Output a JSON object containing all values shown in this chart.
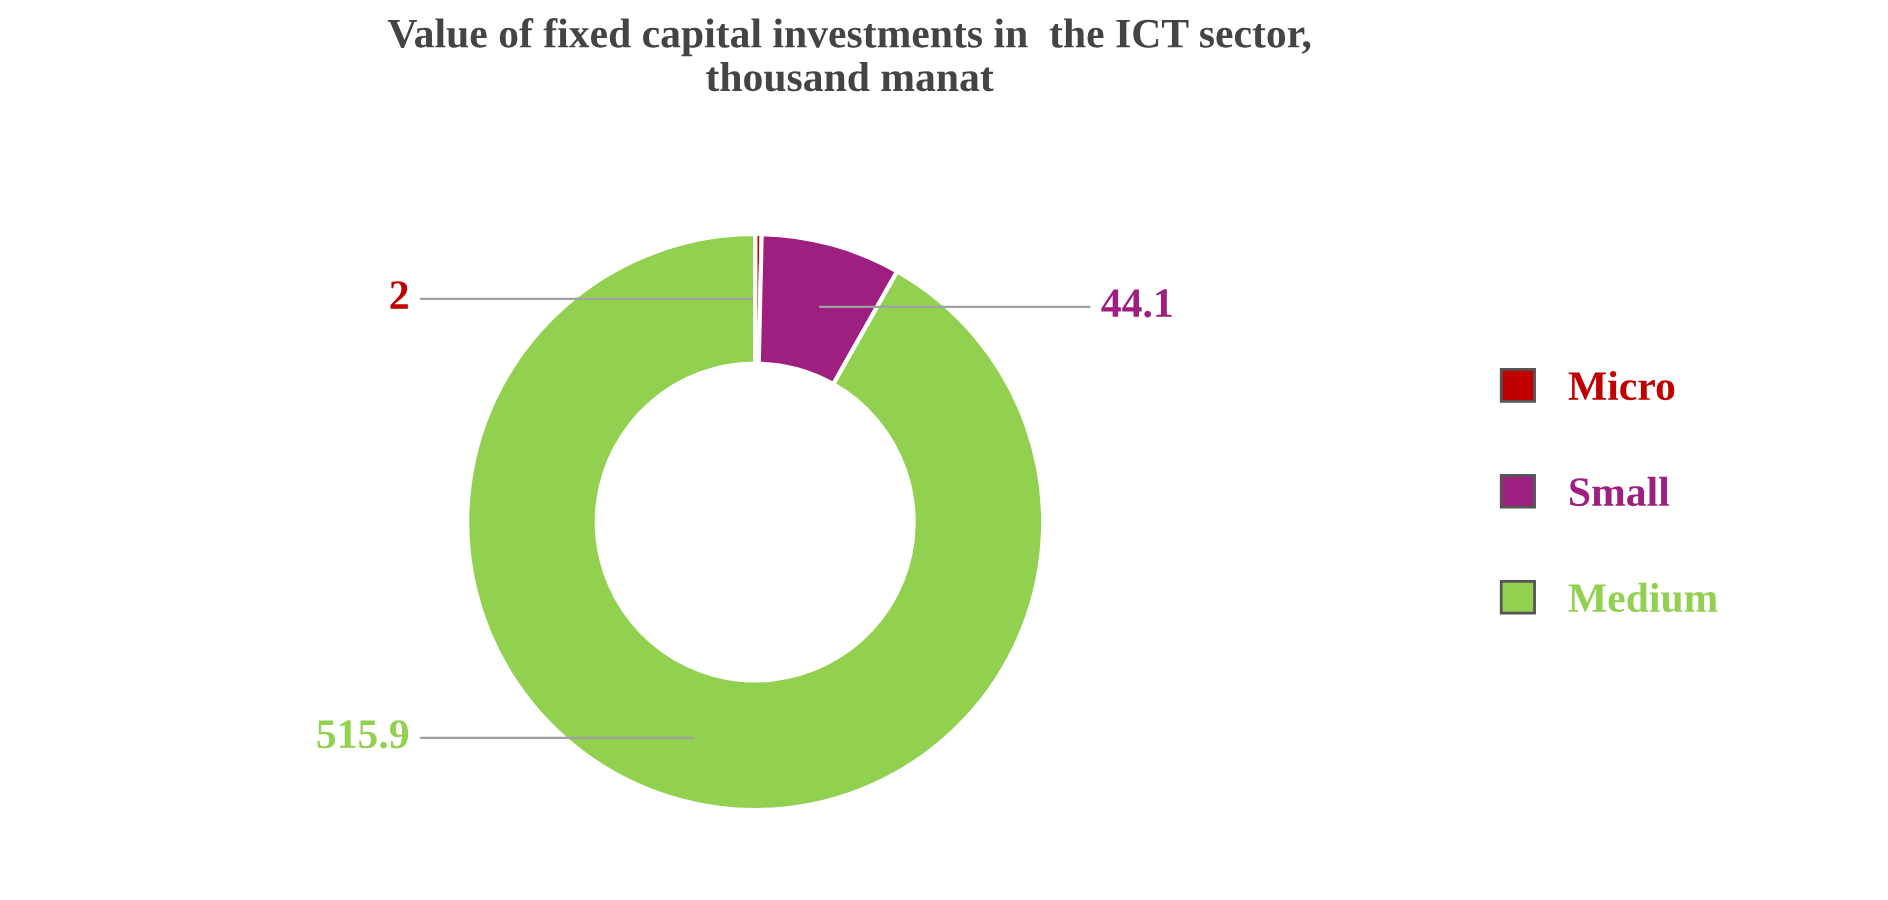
{
  "chart_data": {
    "type": "donut",
    "title": "Value of fixed capital investments in  the ICT sector,\nthousand manat",
    "categories": [
      "Micro",
      "Small",
      "Medium"
    ],
    "values": [
      2,
      44.1,
      515.9
    ],
    "colors": [
      "#c00000",
      "#9e1f80",
      "#92d050"
    ],
    "data_labels": true,
    "legend": "right"
  }
}
